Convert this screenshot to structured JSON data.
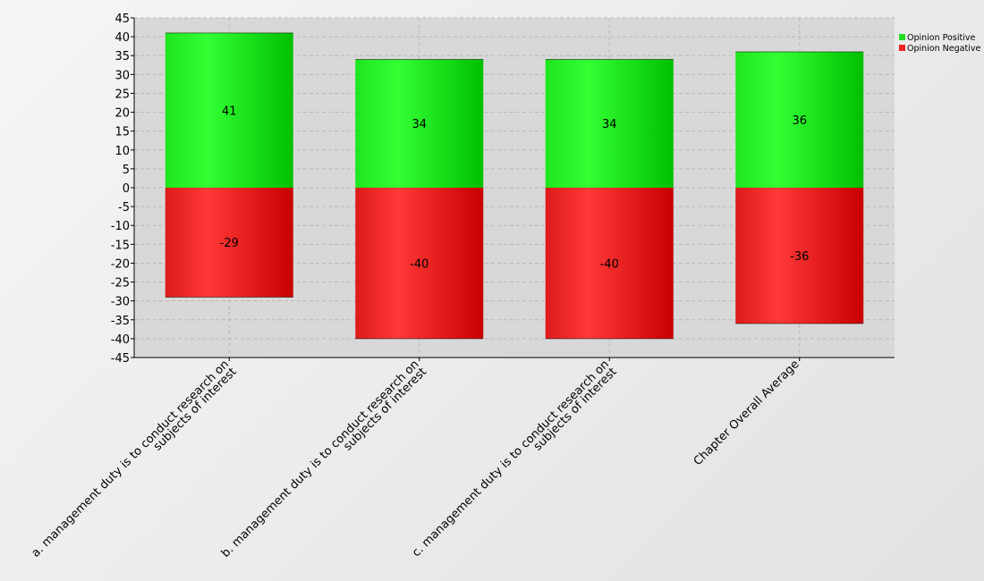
{
  "chart_data": {
    "type": "bar",
    "stacked": true,
    "categories": [
      [
        "a. management duty is to conduct research on",
        "subjects of interest"
      ],
      [
        "b. management duty is to conduct research on",
        "subjects of interest"
      ],
      [
        "c. management duty is to conduct research on",
        "subjects of interest"
      ],
      [
        "Chapter Overall Average"
      ]
    ],
    "series": [
      {
        "name": "Opinion Positive",
        "values": [
          41,
          34,
          34,
          36
        ],
        "color": "#22dd22"
      },
      {
        "name": "Opinion Negative",
        "values": [
          -29,
          -40,
          -40,
          -36
        ],
        "color": "#ee2222"
      }
    ],
    "ylim": [
      -45,
      45
    ],
    "yticks": [
      45,
      40,
      35,
      30,
      25,
      20,
      15,
      10,
      5,
      0,
      -5,
      -10,
      -15,
      -20,
      -25,
      -30,
      -35,
      -40,
      -45
    ],
    "grid": true,
    "legend": "top-right",
    "title": "",
    "xlabel": "",
    "ylabel": ""
  }
}
